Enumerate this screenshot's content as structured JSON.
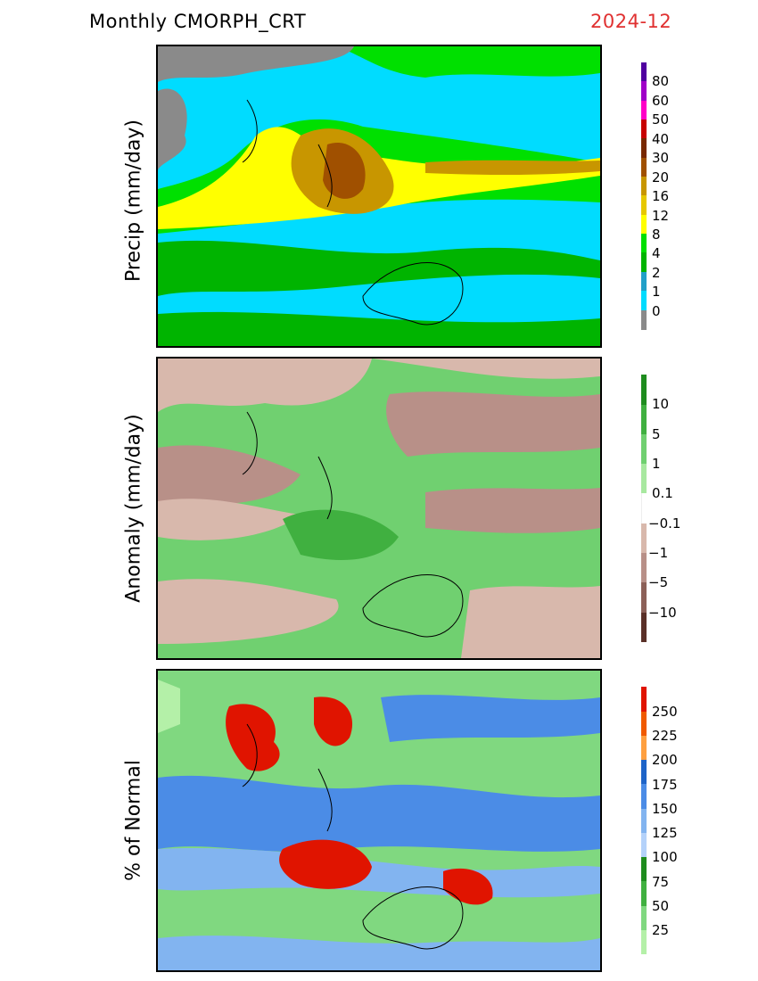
{
  "header": {
    "title": "Monthly  CMORPH_CRT",
    "date": "2024-12"
  },
  "panels": [
    {
      "id": "precip",
      "ylabel": "Precip  (mm/day)",
      "colorbar": {
        "labels": [
          "0",
          "1",
          "2",
          "4",
          "8",
          "12",
          "16",
          "20",
          "30",
          "40",
          "50",
          "60",
          "80"
        ],
        "colors": [
          "#8a8a8a",
          "#00dcff",
          "#21a0c8",
          "#00b400",
          "#00e000",
          "#ffff00",
          "#e6c800",
          "#c89600",
          "#a05000",
          "#782800",
          "#c80000",
          "#ff00c8",
          "#a000c8",
          "#5000a0"
        ]
      }
    },
    {
      "id": "anomaly",
      "ylabel": "Anomaly  (mm/day)",
      "colorbar": {
        "labels": [
          "10",
          "5",
          "1",
          "0.1",
          "−0.1",
          "−1",
          "−5",
          "−10"
        ],
        "colors": [
          "#1e8c1e",
          "#40b040",
          "#70d070",
          "#a8e8a0",
          "#ffffff",
          "#d8b8ac",
          "#b89088",
          "#8c6058",
          "#5a3028"
        ]
      }
    },
    {
      "id": "percent",
      "ylabel": "%  of  Normal",
      "colorbar": {
        "labels": [
          "250",
          "225",
          "200",
          "175",
          "150",
          "125",
          "100",
          "75",
          "50",
          "25"
        ],
        "colors": [
          "#e01400",
          "#f05a00",
          "#ffa040",
          "#1e64c8",
          "#4b8ce6",
          "#82b4f0",
          "#b4d2fa",
          "#1e8c1e",
          "#40b040",
          "#80d880",
          "#b4f0a8"
        ]
      }
    }
  ]
}
